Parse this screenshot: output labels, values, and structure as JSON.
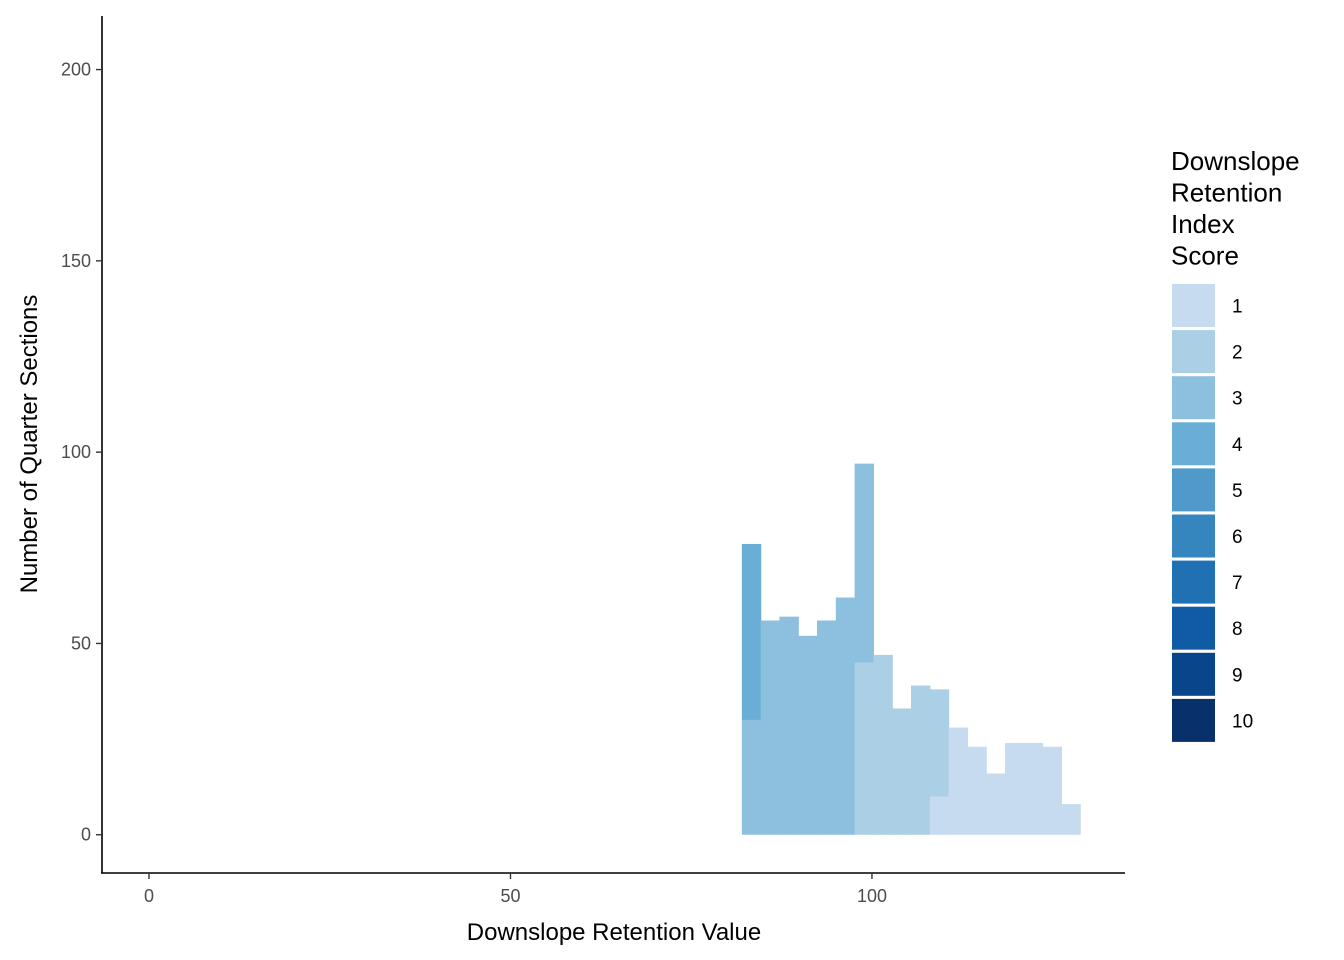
{
  "chart_data": {
    "type": "bar",
    "subtype": "stacked-histogram",
    "xlabel": "Downslope Retention Value",
    "ylabel": "Number of Quarter Sections",
    "xlim": [
      -6.5,
      135
    ],
    "ylim": [
      -10,
      214
    ],
    "xticks": [
      0,
      50,
      100
    ],
    "yticks": [
      0,
      50,
      100,
      150,
      200
    ],
    "bin_start": -1.2,
    "bin_width": 2.6,
    "grid": false,
    "legend": {
      "title_lines": [
        "Downslope",
        "Retention",
        "Index",
        "Score"
      ],
      "placement": "right",
      "items": [
        {
          "label": "1",
          "color": "#c6dbef"
        },
        {
          "label": "2",
          "color": "#abcfe5"
        },
        {
          "label": "3",
          "color": "#8dc0de"
        },
        {
          "label": "4",
          "color": "#6aaed6"
        },
        {
          "label": "5",
          "color": "#4f9acb"
        },
        {
          "label": "6",
          "color": "#3585bf"
        },
        {
          "label": "7",
          "color": "#2070b4"
        },
        {
          "label": "8",
          "color": "#105ba4"
        },
        {
          "label": "9",
          "color": "#08458a"
        },
        {
          "label": "10",
          "color": "#08306b"
        }
      ]
    },
    "series": [
      {
        "name": "1",
        "values": [
          0,
          0,
          0,
          0,
          0,
          0,
          0,
          0,
          0,
          0,
          0,
          0,
          0,
          0,
          0,
          0,
          0,
          0,
          0,
          0,
          0,
          0,
          0,
          0,
          0,
          0,
          0,
          0,
          0,
          0,
          0,
          0,
          0,
          0,
          0,
          0,
          0,
          0,
          0,
          0,
          0,
          0,
          10,
          28,
          23,
          16,
          24,
          24,
          23,
          8
        ]
      },
      {
        "name": "2",
        "values": [
          0,
          0,
          0,
          0,
          0,
          0,
          0,
          0,
          0,
          0,
          0,
          0,
          0,
          0,
          0,
          0,
          0,
          0,
          0,
          0,
          0,
          0,
          0,
          0,
          0,
          0,
          0,
          0,
          0,
          0,
          0,
          0,
          0,
          0,
          0,
          0,
          0,
          0,
          45,
          47,
          33,
          39,
          28,
          0,
          0,
          0,
          0,
          0,
          0,
          0
        ]
      },
      {
        "name": "3",
        "values": [
          0,
          0,
          0,
          0,
          0,
          0,
          0,
          0,
          0,
          0,
          0,
          0,
          0,
          0,
          0,
          0,
          0,
          0,
          0,
          0,
          0,
          0,
          0,
          0,
          0,
          0,
          0,
          0,
          0,
          0,
          0,
          0,
          30,
          56,
          57,
          52,
          56,
          62,
          52,
          0,
          0,
          0,
          0,
          0,
          0,
          0,
          0,
          0,
          0,
          0
        ]
      },
      {
        "name": "4",
        "values": [
          0,
          0,
          0,
          0,
          0,
          0,
          0,
          0,
          0,
          0,
          0,
          0,
          0,
          0,
          0,
          0,
          0,
          0,
          0,
          0,
          0,
          0,
          0,
          0,
          0,
          0,
          0,
          0,
          0,
          0,
          0,
          0,
          46,
          0,
          0,
          0,
          0,
          0,
          0,
          0,
          0,
          0,
          0,
          0,
          0,
          0,
          0,
          0,
          0,
          0
        ]
      },
      {
        "name": "5",
        "values": [
          0,
          0,
          0,
          0,
          0,
          0,
          0,
          0,
          0,
          0,
          0,
          0,
          0,
          0,
          0,
          0,
          0,
          0,
          0,
          0,
          0,
          0,
          0,
          0,
          0,
          0,
          0,
          0,
          0,
          0,
          0,
          0,
          0,
          0,
          0,
          0,
          0,
          0,
          0,
          0,
          0,
          0,
          0,
          0,
          0,
          0,
          0,
          0,
          0,
          0
        ]
      }
    ]
  }
}
